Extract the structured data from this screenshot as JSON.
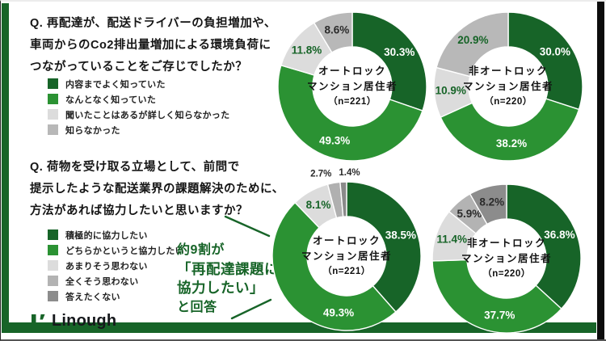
{
  "page": {
    "accent_green": "#176428",
    "mid_green": "#2b9233",
    "background": "#ffffff"
  },
  "logo": {
    "text": "Linough"
  },
  "questions": [
    {
      "id": "q1",
      "lines": [
        "Q. 再配達が、配送ドライバーの負担増加や、",
        "車両からのCo2排出量増加による環境負荷に",
        "つながっていることをご存じでしたか？"
      ],
      "legend": [
        {
          "label": "内容までよく知っていた",
          "color": "#176428"
        },
        {
          "label": "なんとなく知っていた",
          "color": "#2b9233"
        },
        {
          "label": "聞いたことはあるが詳しく知らなかった",
          "color": "#dcdcdc"
        },
        {
          "label": "知らなかった",
          "color": "#b8b8b8"
        }
      ]
    },
    {
      "id": "q2",
      "lines": [
        "Q. 荷物を受け取る立場として、前問で",
        "提示したような配送業界の課題解決のために、",
        "方法があれば協力したいと思いますか？"
      ],
      "legend": [
        {
          "label": "積極的に協力したい",
          "color": "#176428"
        },
        {
          "label": "どちらかというと協力したい",
          "color": "#2b9233"
        },
        {
          "label": "あまりそう思わない",
          "color": "#dcdcdc"
        },
        {
          "label": "全くそう思わない",
          "color": "#b3b3b3"
        },
        {
          "label": "答えたくない",
          "color": "#8c8c8c"
        }
      ]
    }
  ],
  "callout": {
    "lines": [
      "約9割が",
      "「再配達課題に",
      "協力したい」",
      "と回答"
    ],
    "color": "#176428"
  },
  "chart_data": [
    {
      "type": "pie",
      "variant": "donut",
      "question": "q1",
      "group": "オートロックマンション居住者",
      "n": 221,
      "center_lines": [
        "オートロック",
        "マンション居住者",
        "（n=221）"
      ],
      "slices": [
        {
          "label": "内容までよく知っていた",
          "value": 30.3,
          "color": "#176428",
          "label_color": "#ffffff"
        },
        {
          "label": "なんとなく知っていた",
          "value": 49.3,
          "color": "#2b9233",
          "label_color": "#ffffff"
        },
        {
          "label": "聞いたことはあるが詳しく知らなかった",
          "value": 11.8,
          "color": "#dcdcdc",
          "label_color": "#176428"
        },
        {
          "label": "知らなかった",
          "value": 8.6,
          "color": "#b8b8b8",
          "label_color": "#2b2b2b"
        }
      ]
    },
    {
      "type": "pie",
      "variant": "donut",
      "question": "q1",
      "group": "非オートロックマンション居住者",
      "n": 220,
      "center_lines": [
        "非オートロック",
        "マンション居住者",
        "（n=220）"
      ],
      "slices": [
        {
          "label": "内容までよく知っていた",
          "value": 30.0,
          "color": "#176428",
          "label_color": "#ffffff"
        },
        {
          "label": "なんとなく知っていた",
          "value": 38.2,
          "color": "#2b9233",
          "label_color": "#ffffff"
        },
        {
          "label": "聞いたことはあるが詳しく知らなかった",
          "value": 10.9,
          "color": "#dcdcdc",
          "label_color": "#176428"
        },
        {
          "label": "知らなかった",
          "value": 20.9,
          "color": "#b8b8b8",
          "label_color": "#176428"
        }
      ]
    },
    {
      "type": "pie",
      "variant": "donut",
      "question": "q2",
      "group": "オートロックマンション居住者",
      "n": 221,
      "center_lines": [
        "オートロック",
        "マンション居住者",
        "（n=221）"
      ],
      "slices": [
        {
          "label": "積極的に協力したい",
          "value": 38.5,
          "color": "#176428",
          "label_color": "#ffffff"
        },
        {
          "label": "どちらかというと協力したい",
          "value": 49.3,
          "color": "#2b9233",
          "label_color": "#ffffff",
          "label_angle": 188
        },
        {
          "label": "あまりそう思わない",
          "value": 8.1,
          "color": "#dcdcdc",
          "label_color": "#176428"
        },
        {
          "label": "全くそう思わない",
          "value": 2.7,
          "color": "#b0b0b0",
          "label_color": "#2b2b2b",
          "label_outside": true,
          "label_dx": -14
        },
        {
          "label": "答えたくない",
          "value": 1.4,
          "color": "#8a8a8a",
          "label_color": "#2b2b2b",
          "label_outside": true,
          "label_dx": 8
        }
      ]
    },
    {
      "type": "pie",
      "variant": "donut",
      "question": "q2",
      "group": "非オートロックマンション居住者",
      "n": 220,
      "center_lines": [
        "非オートロック",
        "マンション居住者",
        "（n=220）"
      ],
      "slices": [
        {
          "label": "積極的に協力したい",
          "value": 36.8,
          "color": "#176428",
          "label_color": "#ffffff"
        },
        {
          "label": "どちらかというと協力したい",
          "value": 37.7,
          "color": "#2b9233",
          "label_color": "#ffffff",
          "label_angle": 187
        },
        {
          "label": "あまりそう思わない",
          "value": 11.4,
          "color": "#dcdcdc",
          "label_color": "#176428"
        },
        {
          "label": "全くそう思わない",
          "value": 5.9,
          "color": "#b3b3b3",
          "label_color": "#2b2b2b"
        },
        {
          "label": "答えたくない",
          "value": 8.2,
          "color": "#8c8c8c",
          "label_color": "#2b2b2b"
        }
      ]
    }
  ]
}
